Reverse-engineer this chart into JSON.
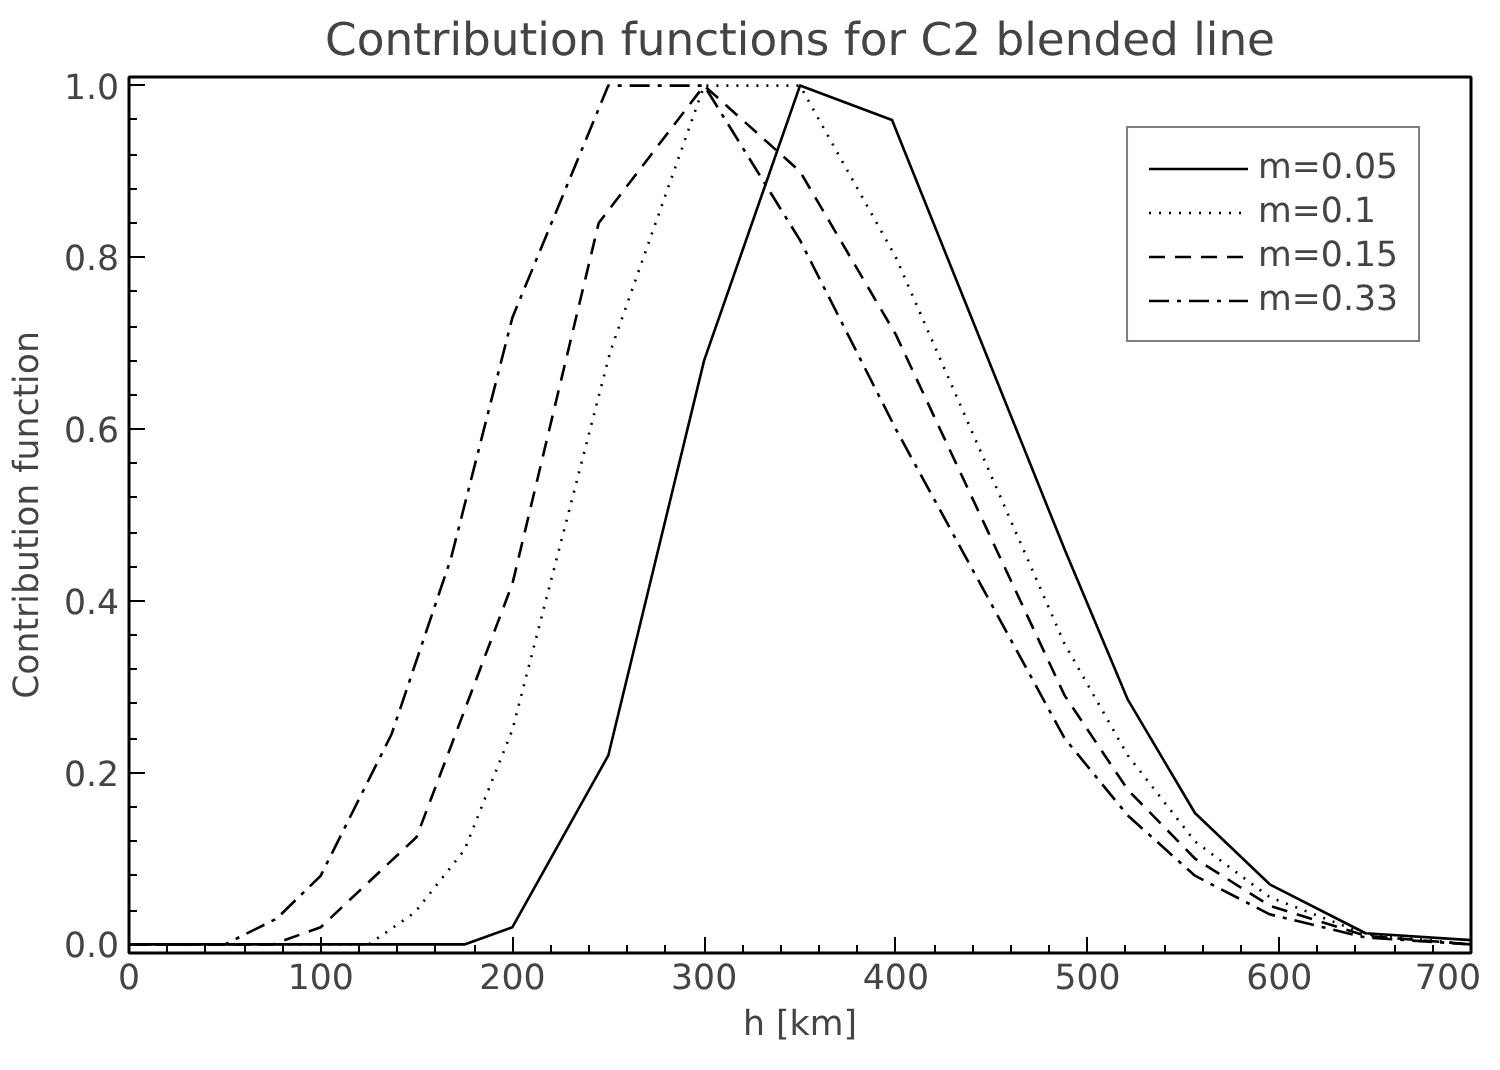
{
  "chart_data": {
    "type": "line",
    "title": "Contribution functions for C2 blended line",
    "xlabel": "h [km]",
    "ylabel": "Contribution function",
    "xlim": [
      0,
      700
    ],
    "ylim": [
      -0.01,
      1.01
    ],
    "xticks": [
      0,
      100,
      200,
      300,
      400,
      500,
      600,
      700
    ],
    "yticks": [
      {
        "value": 0,
        "label": "0.0"
      },
      {
        "value": 0.2,
        "label": "0.2"
      },
      {
        "value": 0.4,
        "label": "0.4"
      },
      {
        "value": 0.6,
        "label": "0.6"
      },
      {
        "value": 0.8,
        "label": "0.8"
      },
      {
        "value": 1,
        "label": "1.0"
      }
    ],
    "grid": false,
    "legend": "top right",
    "marker": "none",
    "series": [
      {
        "name": "m=0.05",
        "color": "#000000",
        "line_style": "solid",
        "x": [
          0,
          175,
          200,
          250,
          300,
          350,
          398,
          488,
          521,
          556,
          595,
          645,
          700
        ],
        "values": [
          0,
          0,
          0.02,
          0.22,
          0.68,
          1.0,
          0.96,
          0.46,
          0.285,
          0.153,
          0.07,
          0.013,
          0.005
        ]
      },
      {
        "name": "m=0.1",
        "color": "#000000",
        "line_style": "dotted",
        "x": [
          0,
          125,
          149,
          175,
          200,
          251,
          300,
          350,
          400,
          488,
          521,
          556,
          595,
          645,
          700
        ],
        "values": [
          0,
          0,
          0.037,
          0.11,
          0.25,
          0.69,
          1.0,
          1.0,
          0.8,
          0.35,
          0.22,
          0.12,
          0.055,
          0.012,
          0
        ]
      },
      {
        "name": "m=0.15",
        "color": "#000000",
        "line_style": "dashed",
        "x": [
          0,
          75,
          100,
          150,
          200,
          245,
          300,
          350,
          400,
          488,
          521,
          556,
          595,
          645,
          700
        ],
        "values": [
          0,
          0,
          0.02,
          0.125,
          0.42,
          0.84,
          1.0,
          0.9,
          0.71,
          0.29,
          0.18,
          0.1,
          0.045,
          0.01,
          0
        ]
      },
      {
        "name": "m=0.33",
        "color": "#000000",
        "line_style": "dashdot",
        "x": [
          0,
          50,
          77,
          100,
          137,
          168,
          200,
          250,
          300,
          350,
          400,
          488,
          521,
          556,
          595,
          645,
          700
        ],
        "values": [
          0,
          0,
          0.03,
          0.08,
          0.245,
          0.45,
          0.73,
          1.0,
          1.0,
          0.82,
          0.6,
          0.24,
          0.15,
          0.08,
          0.035,
          0.008,
          0
        ]
      }
    ]
  }
}
